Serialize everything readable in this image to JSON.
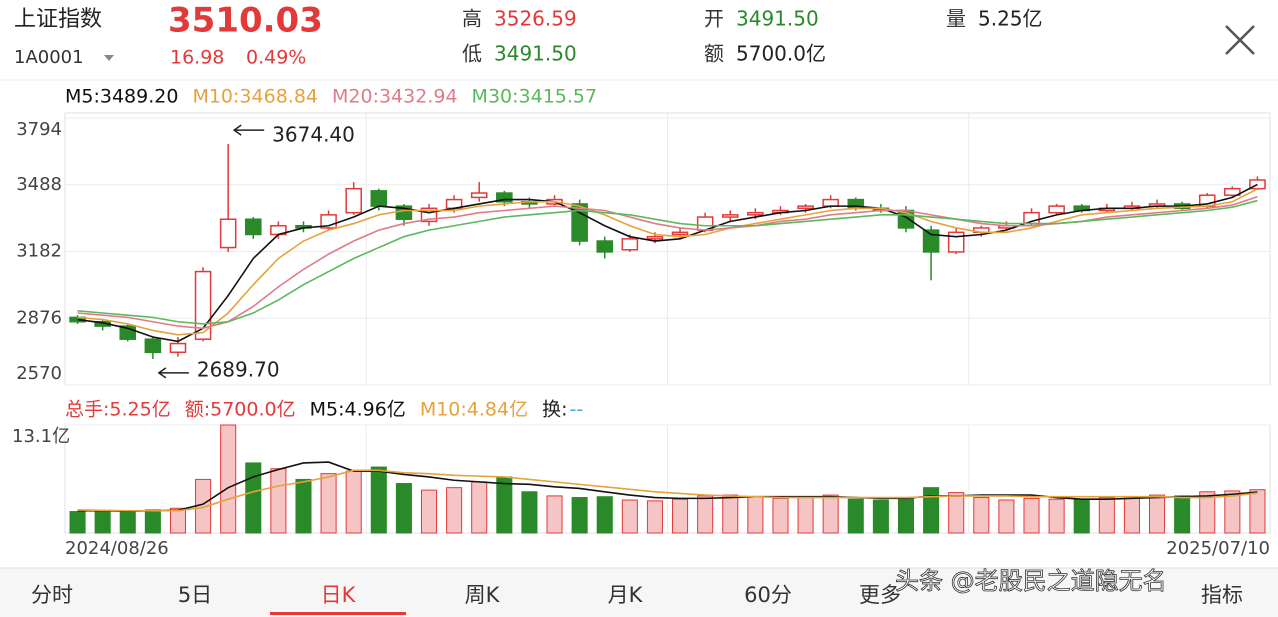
{
  "header": {
    "name": "上证指数",
    "code": "1A0001",
    "price": "3510.03",
    "change": "16.98",
    "change_pct": "0.49%",
    "high_label": "高",
    "high": "3526.59",
    "low_label": "低",
    "low": "3491.50",
    "open_label": "开",
    "open": "3491.50",
    "amount_label": "额",
    "amount": "5700.0亿",
    "volume_label": "量",
    "volume": "5.25亿"
  },
  "chart_data": {
    "type": "candlestick",
    "up_color": "#e23a3a",
    "down_color": "#2a8a2a",
    "ylim": [
      2570,
      3794
    ],
    "yticks": [
      3794,
      3488,
      3182,
      2876,
      2570
    ],
    "grid": true,
    "x_labels": [
      "2024/08/26",
      "2025/07/10"
    ],
    "annotations": [
      "3674.40",
      "2689.70"
    ],
    "candles": {
      "open": [
        2880,
        2860,
        2840,
        2780,
        2720,
        2780,
        3200,
        3330,
        3260,
        3300,
        3290,
        3360,
        3460,
        3390,
        3320,
        3380,
        3430,
        3450,
        3410,
        3400,
        3400,
        3230,
        3190,
        3240,
        3260,
        3280,
        3340,
        3350,
        3360,
        3380,
        3390,
        3420,
        3380,
        3370,
        3280,
        3180,
        3270,
        3290,
        3310,
        3360,
        3390,
        3370,
        3380,
        3390,
        3400,
        3390,
        3440,
        3470
      ],
      "high": [
        2890,
        2870,
        2850,
        2790,
        2790,
        3110,
        3674.4,
        3340,
        3320,
        3320,
        3370,
        3500,
        3470,
        3400,
        3400,
        3440,
        3500,
        3460,
        3430,
        3440,
        3420,
        3250,
        3260,
        3270,
        3290,
        3360,
        3370,
        3380,
        3390,
        3400,
        3440,
        3430,
        3400,
        3390,
        3300,
        3290,
        3300,
        3320,
        3380,
        3400,
        3400,
        3400,
        3410,
        3420,
        3410,
        3450,
        3480,
        3526.59
      ],
      "low": [
        2850,
        2820,
        2770,
        2689.7,
        2700,
        2770,
        3180,
        3240,
        3240,
        3270,
        3280,
        3350,
        3370,
        3300,
        3300,
        3360,
        3410,
        3390,
        3380,
        3390,
        3210,
        3150,
        3180,
        3220,
        3240,
        3270,
        3320,
        3330,
        3350,
        3360,
        3380,
        3370,
        3360,
        3270,
        3050,
        3170,
        3250,
        3280,
        3300,
        3350,
        3360,
        3360,
        3370,
        3380,
        3370,
        3380,
        3430,
        3465
      ],
      "close": [
        2860,
        2840,
        2780,
        2720,
        2760,
        3090,
        3330,
        3260,
        3300,
        3290,
        3350,
        3470,
        3390,
        3330,
        3380,
        3420,
        3450,
        3410,
        3400,
        3420,
        3230,
        3180,
        3240,
        3250,
        3270,
        3340,
        3350,
        3360,
        3370,
        3390,
        3420,
        3380,
        3370,
        3290,
        3180,
        3270,
        3290,
        3300,
        3360,
        3390,
        3370,
        3380,
        3390,
        3400,
        3380,
        3440,
        3470,
        3510.03
      ]
    },
    "ma": [
      {
        "name": "M5:3489.20",
        "color": "#111111",
        "values": [
          2870,
          2855,
          2830,
          2790,
          2770,
          2830,
          2980,
          3150,
          3260,
          3290,
          3300,
          3340,
          3390,
          3380,
          3360,
          3380,
          3400,
          3420,
          3420,
          3410,
          3360,
          3300,
          3250,
          3230,
          3240,
          3280,
          3320,
          3340,
          3360,
          3370,
          3390,
          3390,
          3380,
          3340,
          3260,
          3250,
          3260,
          3280,
          3320,
          3350,
          3370,
          3380,
          3380,
          3390,
          3390,
          3400,
          3430,
          3489.2
        ]
      },
      {
        "name": "M10:3468.84",
        "color": "#e6a23c",
        "values": [
          2880,
          2870,
          2850,
          2820,
          2800,
          2810,
          2900,
          3030,
          3150,
          3230,
          3280,
          3310,
          3350,
          3370,
          3370,
          3370,
          3390,
          3400,
          3410,
          3410,
          3390,
          3350,
          3300,
          3260,
          3250,
          3260,
          3290,
          3310,
          3330,
          3350,
          3370,
          3380,
          3380,
          3360,
          3320,
          3290,
          3270,
          3270,
          3290,
          3320,
          3350,
          3360,
          3370,
          3380,
          3385,
          3390,
          3410,
          3468.84
        ]
      },
      {
        "name": "M20:3432.94",
        "color": "#e07b8a",
        "values": [
          2900,
          2890,
          2880,
          2860,
          2840,
          2830,
          2860,
          2930,
          3020,
          3100,
          3170,
          3230,
          3280,
          3310,
          3330,
          3340,
          3360,
          3370,
          3380,
          3390,
          3380,
          3370,
          3340,
          3310,
          3290,
          3280,
          3290,
          3300,
          3320,
          3330,
          3350,
          3360,
          3370,
          3370,
          3350,
          3330,
          3310,
          3300,
          3300,
          3310,
          3320,
          3340,
          3350,
          3360,
          3370,
          3380,
          3395,
          3432.94
        ]
      },
      {
        "name": "M30:3415.57",
        "color": "#5cb85c",
        "values": [
          2910,
          2900,
          2890,
          2880,
          2860,
          2850,
          2860,
          2900,
          2960,
          3030,
          3090,
          3150,
          3200,
          3250,
          3280,
          3300,
          3320,
          3340,
          3350,
          3360,
          3370,
          3360,
          3350,
          3330,
          3310,
          3300,
          3300,
          3300,
          3310,
          3320,
          3330,
          3340,
          3350,
          3350,
          3340,
          3330,
          3320,
          3310,
          3310,
          3310,
          3320,
          3330,
          3340,
          3350,
          3360,
          3370,
          3385,
          3415.57
        ]
      }
    ],
    "volume": {
      "ylim": [
        0,
        13.1
      ],
      "yticks": [
        {
          "value": 13.1,
          "label": "13.1亿"
        }
      ],
      "legend": [
        {
          "text": "总手:5.25亿",
          "color": "#e23a3a"
        },
        {
          "text": "额:5700.0亿",
          "color": "#e23a3a"
        }
      ],
      "turnover_label": "换:",
      "turnover": "--",
      "values": [
        2.6,
        2.7,
        2.6,
        2.8,
        3.0,
        6.5,
        13.1,
        8.5,
        7.8,
        6.5,
        7.2,
        7.5,
        8.0,
        6.0,
        5.2,
        5.5,
        6.2,
        6.8,
        5.0,
        4.5,
        4.3,
        4.4,
        4.0,
        3.9,
        4.1,
        4.5,
        4.6,
        4.4,
        4.2,
        4.3,
        4.6,
        4.1,
        4.0,
        4.2,
        5.5,
        4.9,
        4.3,
        4.0,
        4.2,
        4.1,
        4.0,
        4.3,
        4.4,
        4.6,
        4.5,
        5.0,
        5.1,
        5.25
      ],
      "ma": [
        {
          "name": "M5:4.96亿",
          "color": "#111111",
          "values": [
            2.7,
            2.7,
            2.65,
            2.7,
            2.75,
            3.5,
            5.5,
            6.8,
            7.7,
            8.5,
            8.6,
            7.5,
            7.5,
            7.1,
            6.8,
            6.4,
            6.2,
            6.0,
            5.9,
            5.6,
            5.4,
            5.0,
            4.6,
            4.3,
            4.2,
            4.2,
            4.3,
            4.4,
            4.4,
            4.4,
            4.4,
            4.3,
            4.2,
            4.2,
            4.5,
            4.5,
            4.6,
            4.6,
            4.6,
            4.3,
            4.1,
            4.1,
            4.2,
            4.3,
            4.4,
            4.5,
            4.7,
            4.96
          ]
        },
        {
          "name": "M10:4.84亿",
          "color": "#e6a23c",
          "values": [
            2.8,
            2.75,
            2.7,
            2.7,
            2.7,
            3.1,
            4.1,
            5.0,
            5.7,
            6.2,
            6.8,
            7.6,
            7.6,
            7.3,
            7.2,
            7.0,
            6.9,
            6.8,
            6.5,
            6.2,
            5.9,
            5.6,
            5.3,
            5.0,
            4.8,
            4.6,
            4.5,
            4.4,
            4.3,
            4.3,
            4.3,
            4.3,
            4.3,
            4.3,
            4.4,
            4.5,
            4.5,
            4.5,
            4.4,
            4.4,
            4.4,
            4.4,
            4.4,
            4.4,
            4.3,
            4.3,
            4.5,
            4.84
          ]
        }
      ]
    }
  },
  "tabs": [
    "分时",
    "5日",
    "日K",
    "周K",
    "月K",
    "60分",
    "更多",
    "指标"
  ],
  "selected_tab": 2,
  "watermark": "头条 @老股民之道隐无名"
}
